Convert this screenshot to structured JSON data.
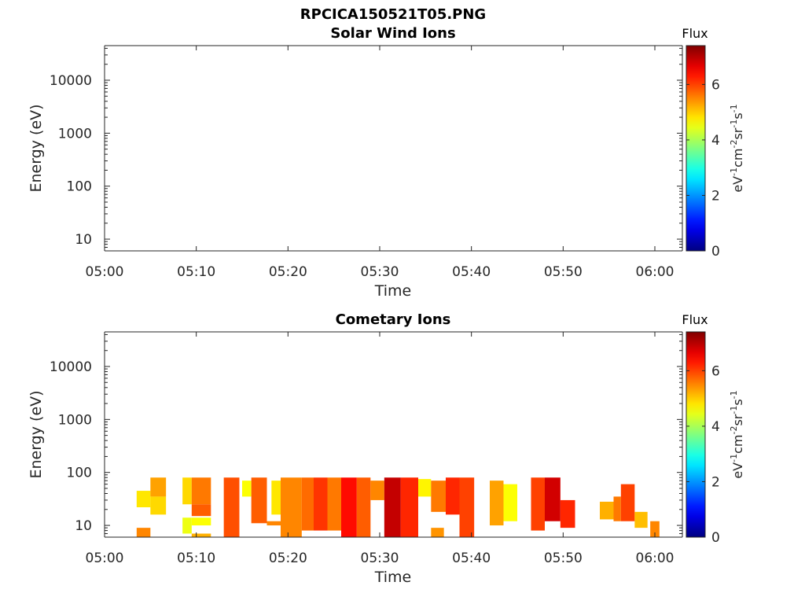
{
  "page_title": "RPCICA150521T05.PNG",
  "colorbar": {
    "title": "Flux",
    "label_base": "eV",
    "label_exp1": "-1",
    "label_cm": "cm",
    "label_exp2": "-2",
    "label_sr": "sr",
    "label_exp3": "-1",
    "label_s": "s",
    "label_exp4": "-1",
    "ticks": [
      0,
      2,
      4,
      6
    ],
    "tick_labels": [
      "0",
      "2",
      "4",
      "6"
    ],
    "range": [
      0,
      7.4
    ],
    "colormap": "jet"
  },
  "chart_data": [
    {
      "type": "heatmap",
      "title": "Solar Wind Ions",
      "xlabel": "Time",
      "ylabel": "Energy (eV)",
      "x_ticks": [
        "05:00",
        "05:10",
        "05:20",
        "05:30",
        "05:40",
        "05:50",
        "06:00"
      ],
      "y_ticks": [
        "10",
        "100",
        "1000",
        "10000"
      ],
      "y_scale": "log",
      "xlim_minutes": [
        0,
        63
      ],
      "ylim_eV": [
        6,
        45000
      ],
      "cells": []
    },
    {
      "type": "heatmap",
      "title": "Cometary Ions",
      "xlabel": "Time",
      "ylabel": "Energy (eV)",
      "x_ticks": [
        "05:00",
        "05:10",
        "05:20",
        "05:30",
        "05:40",
        "05:50",
        "06:00"
      ],
      "y_ticks": [
        "10",
        "100",
        "1000",
        "10000"
      ],
      "y_scale": "log",
      "xlim_minutes": [
        0,
        63
      ],
      "ylim_eV": [
        6,
        45000
      ],
      "cells": [
        {
          "t": [
            3.5,
            5.0
          ],
          "e": [
            6,
            9
          ],
          "flux": 5.5
        },
        {
          "t": [
            3.5,
            5.0
          ],
          "e": [
            22,
            45
          ],
          "flux": 4.8
        },
        {
          "t": [
            5.0,
            6.7
          ],
          "e": [
            35,
            80
          ],
          "flux": 5.3
        },
        {
          "t": [
            5.0,
            6.7
          ],
          "e": [
            16,
            35
          ],
          "flux": 4.9
        },
        {
          "t": [
            8.5,
            9.5
          ],
          "e": [
            25,
            80
          ],
          "flux": 4.9
        },
        {
          "t": [
            9.5,
            11.6
          ],
          "e": [
            25,
            80
          ],
          "flux": 5.6
        },
        {
          "t": [
            9.5,
            11.6
          ],
          "e": [
            15,
            25
          ],
          "flux": 5.8
        },
        {
          "t": [
            8.5,
            9.5
          ],
          "e": [
            7,
            14
          ],
          "flux": 4.5
        },
        {
          "t": [
            9.5,
            11.6
          ],
          "e": [
            10,
            14
          ],
          "flux": 4.6
        },
        {
          "t": [
            9.5,
            11.6
          ],
          "e": [
            6,
            7
          ],
          "flux": 5.2
        },
        {
          "t": [
            13.0,
            14.7
          ],
          "e": [
            6,
            80
          ],
          "flux": 5.9
        },
        {
          "t": [
            15.0,
            16.0
          ],
          "e": [
            35,
            70
          ],
          "flux": 4.6
        },
        {
          "t": [
            16.0,
            17.7
          ],
          "e": [
            11,
            80
          ],
          "flux": 5.8
        },
        {
          "t": [
            17.7,
            19.2
          ],
          "e": [
            10,
            12
          ],
          "flux": 5.5
        },
        {
          "t": [
            18.2,
            19.2
          ],
          "e": [
            16,
            70
          ],
          "flux": 4.8
        },
        {
          "t": [
            19.2,
            21.5
          ],
          "e": [
            6,
            80
          ],
          "flux": 5.5
        },
        {
          "t": [
            21.5,
            22.8
          ],
          "e": [
            8,
            80
          ],
          "flux": 5.7
        },
        {
          "t": [
            22.8,
            24.3
          ],
          "e": [
            8,
            80
          ],
          "flux": 6.1
        },
        {
          "t": [
            24.3,
            25.8
          ],
          "e": [
            8,
            80
          ],
          "flux": 5.6
        },
        {
          "t": [
            25.8,
            27.5
          ],
          "e": [
            6,
            80
          ],
          "flux": 6.4
        },
        {
          "t": [
            27.5,
            29.0
          ],
          "e": [
            6,
            80
          ],
          "flux": 5.8
        },
        {
          "t": [
            29.0,
            30.5
          ],
          "e": [
            30,
            70
          ],
          "flux": 5.5
        },
        {
          "t": [
            30.5,
            32.3
          ],
          "e": [
            6,
            80
          ],
          "flux": 6.9
        },
        {
          "t": [
            32.3,
            34.2
          ],
          "e": [
            6,
            80
          ],
          "flux": 6.2
        },
        {
          "t": [
            34.2,
            35.6
          ],
          "e": [
            35,
            75
          ],
          "flux": 4.7
        },
        {
          "t": [
            35.6,
            37.2
          ],
          "e": [
            18,
            70
          ],
          "flux": 5.6
        },
        {
          "t": [
            37.2,
            38.7
          ],
          "e": [
            16,
            80
          ],
          "flux": 6.2
        },
        {
          "t": [
            38.7,
            40.3
          ],
          "e": [
            6,
            80
          ],
          "flux": 6.0
        },
        {
          "t": [
            35.6,
            37.0
          ],
          "e": [
            6,
            9
          ],
          "flux": 5.4
        },
        {
          "t": [
            42.0,
            43.5
          ],
          "e": [
            10,
            70
          ],
          "flux": 5.3
        },
        {
          "t": [
            43.5,
            45.0
          ],
          "e": [
            12,
            60
          ],
          "flux": 4.6
        },
        {
          "t": [
            46.5,
            48.0
          ],
          "e": [
            8,
            80
          ],
          "flux": 6.0
        },
        {
          "t": [
            48.0,
            49.7
          ],
          "e": [
            12,
            80
          ],
          "flux": 6.8
        },
        {
          "t": [
            49.7,
            51.3
          ],
          "e": [
            9,
            30
          ],
          "flux": 6.2
        },
        {
          "t": [
            54.0,
            55.5
          ],
          "e": [
            13,
            28
          ],
          "flux": 5.2
        },
        {
          "t": [
            55.5,
            56.3
          ],
          "e": [
            12,
            35
          ],
          "flux": 5.6
        },
        {
          "t": [
            56.3,
            57.8
          ],
          "e": [
            12,
            60
          ],
          "flux": 6.0
        },
        {
          "t": [
            57.8,
            59.2
          ],
          "e": [
            9,
            18
          ],
          "flux": 5.1
        },
        {
          "t": [
            59.5,
            60.5
          ],
          "e": [
            6,
            12
          ],
          "flux": 5.5
        }
      ]
    }
  ]
}
